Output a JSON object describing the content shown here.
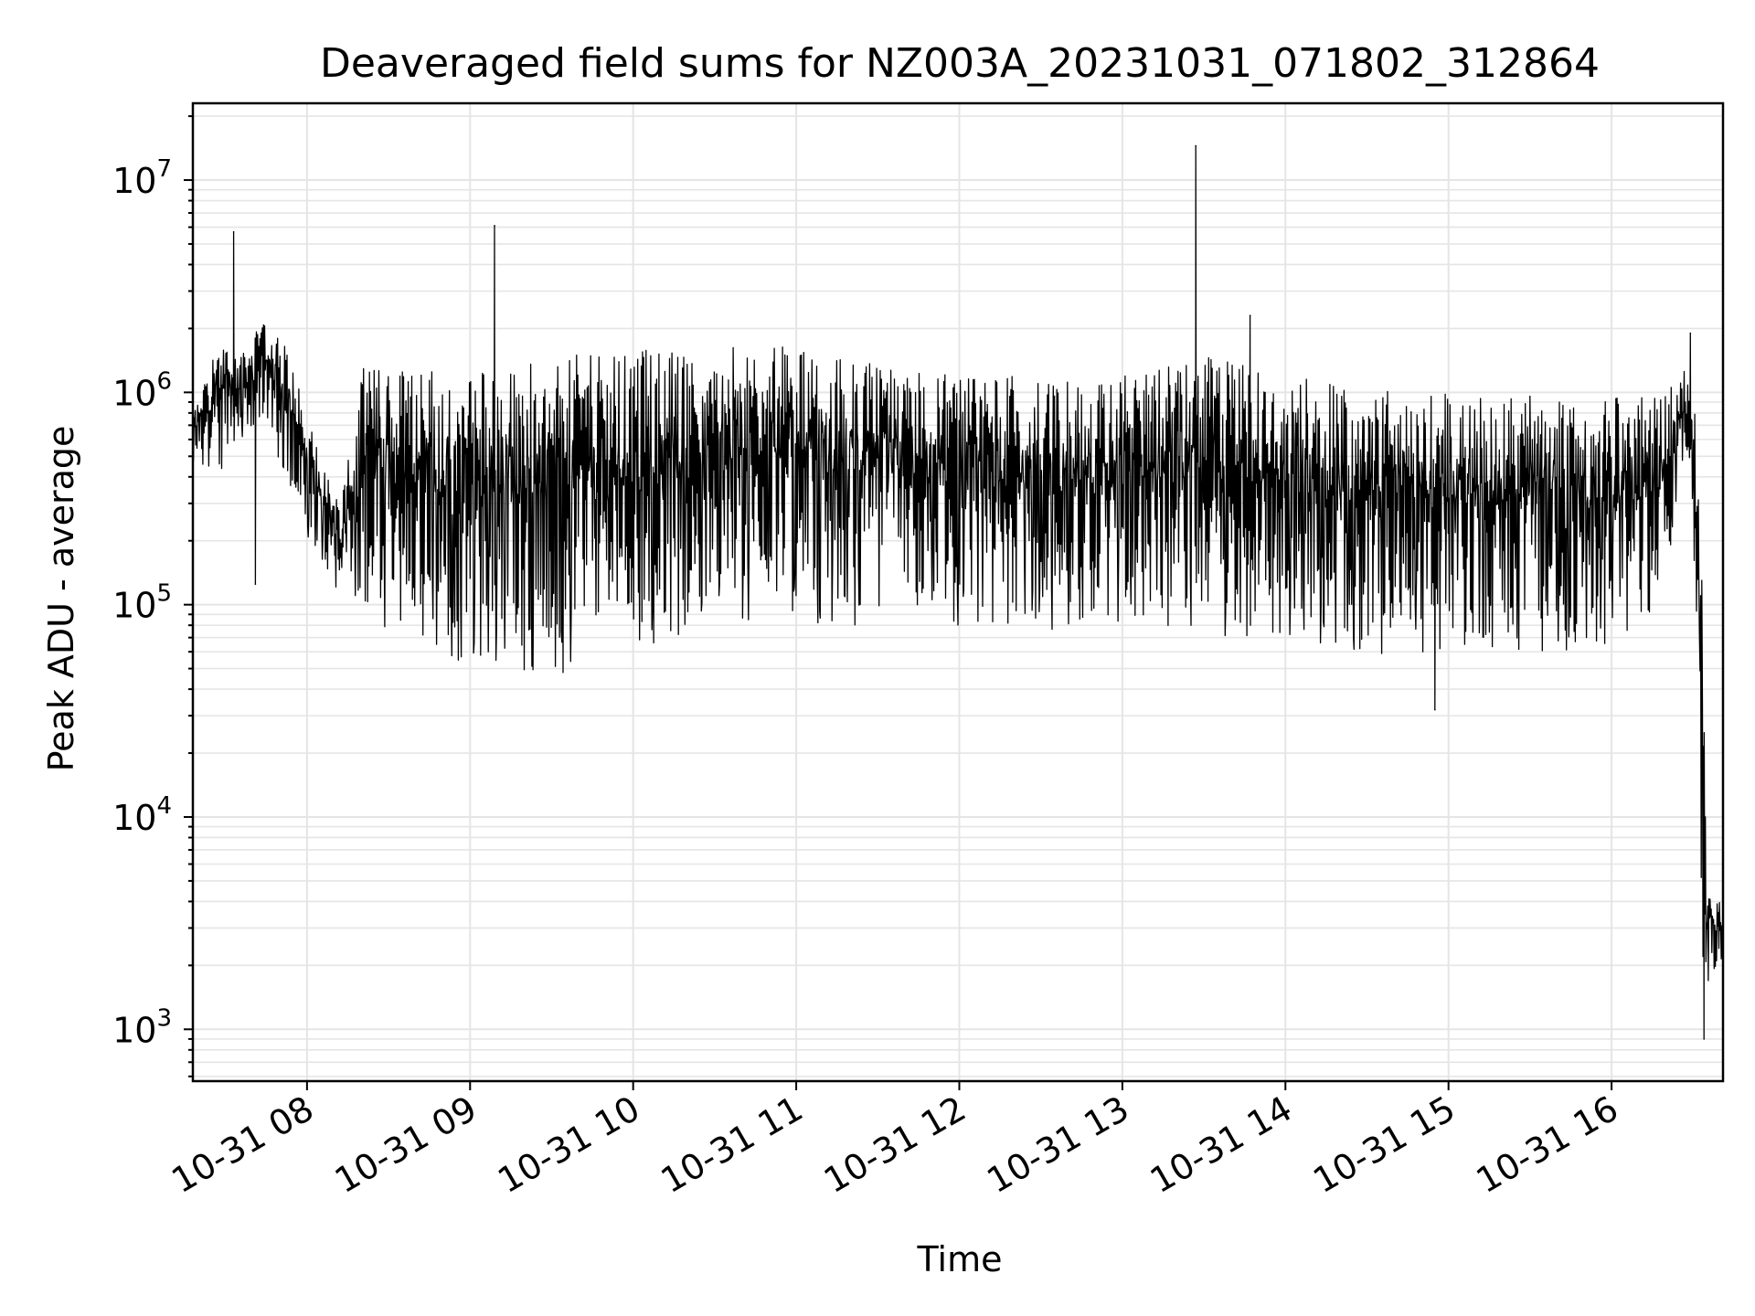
{
  "chart_data": {
    "type": "line",
    "title": "Deaveraged field sums for NZ003A_20231031_071802_312864",
    "xlabel": "Time",
    "ylabel": "Peak ADU - average",
    "x_scale": "time",
    "y_scale": "log",
    "xlim": [
      "2023-10-31 07:18",
      "2023-10-31 16:41"
    ],
    "ylim": [
      570,
      23000000
    ],
    "x_ticks": [
      "10-31 08",
      "10-31 09",
      "10-31 10",
      "10-31 11",
      "10-31 12",
      "10-31 13",
      "10-31 14",
      "10-31 15",
      "10-31 16"
    ],
    "y_ticks": [
      1000,
      10000,
      100000,
      1000000,
      10000000
    ],
    "y_tick_labels": [
      {
        "base": "10",
        "exp": "3"
      },
      {
        "base": "10",
        "exp": "4"
      },
      {
        "base": "10",
        "exp": "5"
      },
      {
        "base": "10",
        "exp": "6"
      },
      {
        "base": "10",
        "exp": "7"
      }
    ],
    "grid": true,
    "line_color": "#000000",
    "grid_color": "#e5e5e5",
    "envelope": {
      "description_units": "hour-of-day vs ADU",
      "hours": [
        7.3,
        7.45,
        7.6,
        7.75,
        7.9,
        8.0,
        8.1,
        8.2,
        8.35,
        8.5,
        8.7,
        9.0,
        9.3,
        9.6,
        9.9,
        10.1,
        10.4,
        10.8,
        11.2,
        11.6,
        12.0,
        12.4,
        12.8,
        13.2,
        13.6,
        14.0,
        14.4,
        14.8,
        15.2,
        15.6,
        16.0,
        16.3,
        16.45,
        16.5,
        16.55,
        16.58,
        16.62,
        16.68
      ],
      "upper": [
        800000,
        1800000,
        1500000,
        2300000,
        1500000,
        800000,
        500000,
        300000,
        1400000,
        1400000,
        1400000,
        1400000,
        1400000,
        1500000,
        1500000,
        1600000,
        1600000,
        1700000,
        1500000,
        1300000,
        1200000,
        1200000,
        1100000,
        1300000,
        1500000,
        1200000,
        1100000,
        1000000,
        1000000,
        950000,
        950000,
        1000000,
        1300000,
        1000000,
        400000,
        5000,
        4000,
        4000
      ],
      "lower": [
        450000,
        400000,
        600000,
        600000,
        300000,
        200000,
        150000,
        100000,
        80000,
        70000,
        60000,
        50000,
        45000,
        45000,
        42000,
        50000,
        70000,
        90000,
        80000,
        80000,
        80000,
        75000,
        75000,
        80000,
        70000,
        70000,
        60000,
        55000,
        60000,
        60000,
        60000,
        90000,
        500000,
        300000,
        2000,
        1500,
        1800,
        1800
      ]
    },
    "spikes": [
      {
        "time": "07:33",
        "value": 5700000
      },
      {
        "time": "07:41",
        "value": 125000
      },
      {
        "time": "09:09",
        "value": 6100000
      },
      {
        "time": "13:27",
        "value": 14500000
      },
      {
        "time": "13:47",
        "value": 2300000
      },
      {
        "time": "14:55",
        "value": 32000
      },
      {
        "time": "16:29",
        "value": 1900000
      },
      {
        "time": "16:34",
        "value": 900
      }
    ]
  }
}
